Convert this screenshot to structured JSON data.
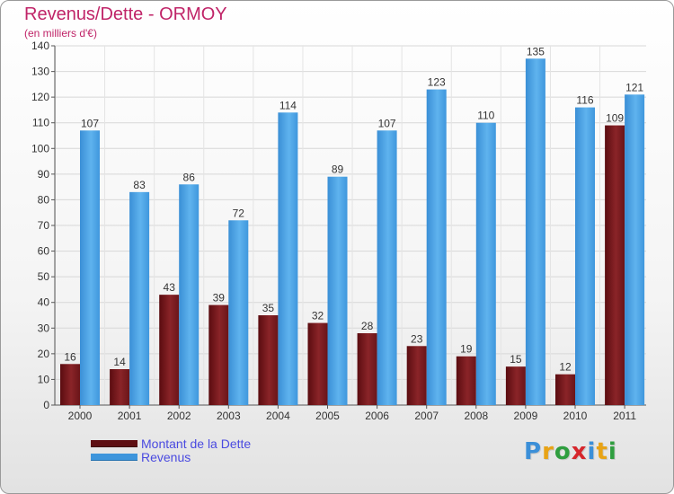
{
  "header": {
    "title": "Revenus/Dette - ORMOY",
    "subtitle": "(en milliers d'€)"
  },
  "chart_data": {
    "type": "bar",
    "categories": [
      "2000",
      "2001",
      "2002",
      "2003",
      "2004",
      "2005",
      "2006",
      "2007",
      "2008",
      "2009",
      "2010",
      "2011"
    ],
    "series": [
      {
        "name": "Montant de la Dette",
        "color": "#7a1a1e",
        "values": [
          16,
          14,
          43,
          39,
          35,
          32,
          28,
          23,
          19,
          15,
          12,
          109
        ]
      },
      {
        "name": "Revenus",
        "color": "#4ea6e6",
        "values": [
          107,
          83,
          86,
          72,
          114,
          89,
          107,
          123,
          110,
          135,
          116,
          121
        ]
      }
    ],
    "ylim": [
      0,
      140
    ],
    "yticks": [
      0,
      10,
      20,
      30,
      40,
      50,
      60,
      70,
      80,
      90,
      100,
      110,
      120,
      130,
      140
    ],
    "grid": true,
    "legend_position": "bottom-left"
  },
  "logo": {
    "letters": [
      "P",
      "r",
      "o",
      "x",
      "i",
      "t",
      "i"
    ],
    "colors": [
      "#3b8fd8",
      "#e8a316",
      "#2f9e3f",
      "#d6262c",
      "#3b8fd8",
      "#e8a316",
      "#2f9e3f"
    ]
  }
}
